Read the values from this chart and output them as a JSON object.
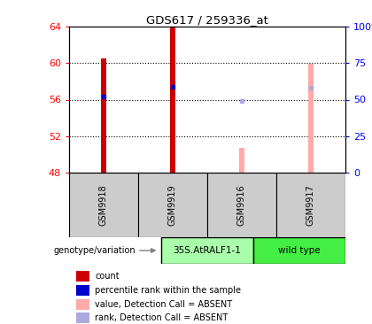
{
  "title": "GDS617 / 259336_at",
  "samples": [
    "GSM9918",
    "GSM9919",
    "GSM9916",
    "GSM9917"
  ],
  "groups": [
    "35S.AtRALF1-1",
    "35S.AtRALF1-1",
    "wild type",
    "wild type"
  ],
  "group_names": [
    "35S.AtRALF1-1",
    "wild type"
  ],
  "ylim": [
    48,
    64
  ],
  "yticks": [
    48,
    52,
    56,
    60,
    64
  ],
  "y2ticks": [
    0,
    25,
    50,
    75,
    100
  ],
  "y2labels": [
    "0",
    "25",
    "50",
    "75",
    "100%"
  ],
  "count_values": [
    60.5,
    63.9,
    null,
    null
  ],
  "rank_values": [
    56.3,
    57.4,
    null,
    null
  ],
  "absent_count_values": [
    null,
    null,
    50.7,
    59.9
  ],
  "absent_rank_values": [
    null,
    null,
    55.9,
    57.3
  ],
  "count_color": "#cc0000",
  "rank_color": "#0000cc",
  "absent_count_color": "#ffaaaa",
  "absent_rank_color": "#aaaadd",
  "bar_bottom": 48,
  "legend_items": [
    {
      "label": "count",
      "color": "#cc0000"
    },
    {
      "label": "percentile rank within the sample",
      "color": "#0000cc"
    },
    {
      "label": "value, Detection Call = ABSENT",
      "color": "#ffaaaa"
    },
    {
      "label": "rank, Detection Call = ABSENT",
      "color": "#aaaadd"
    }
  ],
  "xlabel_area_color": "#cccccc",
  "group1_color": "#aaffaa",
  "group2_color": "#44ee44",
  "bar_width": 0.08,
  "rank_marker_size": 3.5,
  "absent_rank_marker_size": 3.5,
  "genotype_label": "genotype/variation"
}
